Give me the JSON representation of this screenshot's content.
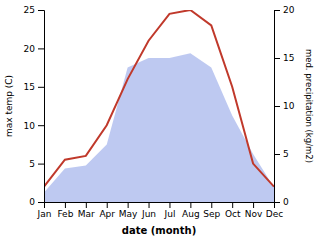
{
  "chart_data": {
    "type": "line",
    "categories": [
      "Jan",
      "Feb",
      "Mar",
      "Apr",
      "May",
      "Jun",
      "Jul",
      "Aug",
      "Sep",
      "Oct",
      "Nov",
      "Dec"
    ],
    "xlabel": "date (month)",
    "ylabel": "max temp (C)",
    "y2label": "med. precipitation (kg/m2)",
    "ylim": [
      0,
      25
    ],
    "yticks": [
      0,
      5,
      10,
      15,
      20,
      25
    ],
    "y2lim": [
      0,
      20
    ],
    "y2ticks": [
      0,
      5,
      10,
      15,
      20
    ],
    "series": [
      {
        "type": "area",
        "axis": "y2",
        "color": "#b3bfee",
        "values": [
          1,
          3.5,
          3.8,
          6,
          14,
          15,
          15,
          15.5,
          14,
          9,
          5,
          1.5
        ]
      },
      {
        "type": "line",
        "color": "#c0392b",
        "values": [
          2,
          5.5,
          6.0,
          10,
          16,
          21,
          24.5,
          25,
          23,
          15,
          5,
          2
        ]
      }
    ]
  }
}
